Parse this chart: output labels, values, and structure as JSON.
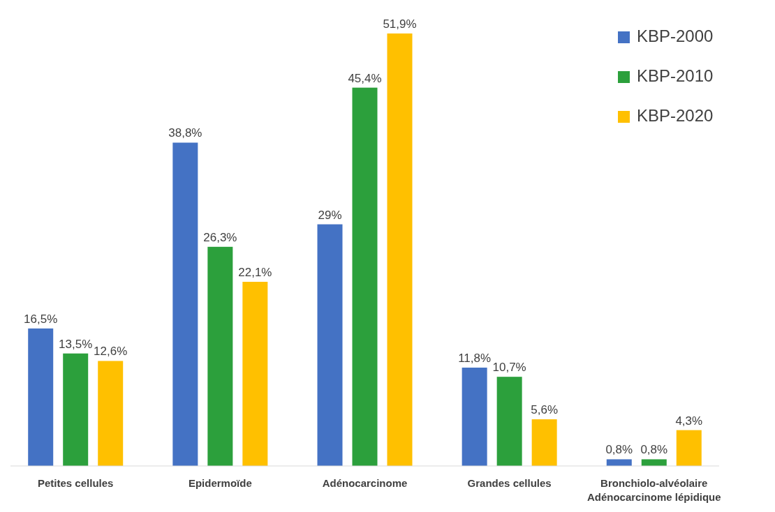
{
  "chart_data": {
    "type": "bar",
    "categories": [
      "Petites cellules",
      "Epidermoïde",
      "Adénocarcinome",
      "Grandes cellules",
      "Bronchiolo-alvéolaire\nAdénocarcinome lépidique"
    ],
    "series": [
      {
        "name": "KBP-2000",
        "color": "#4472c4",
        "values": [
          16.5,
          38.8,
          29,
          11.8,
          0.8
        ],
        "value_labels": [
          "16,5%",
          "38,8%",
          "29%",
          "11,8%",
          "0,8%"
        ]
      },
      {
        "name": "KBP-2010",
        "color": "#2ca03c",
        "values": [
          13.5,
          26.3,
          45.4,
          10.7,
          0.8
        ],
        "value_labels": [
          "13,5%",
          "26,3%",
          "45,4%",
          "10,7%",
          "0,8%"
        ]
      },
      {
        "name": "KBP-2020",
        "color": "#ffc000",
        "values": [
          12.6,
          22.1,
          51.9,
          5.6,
          4.3
        ],
        "value_labels": [
          "12,6%",
          "22,1%",
          "51,9%",
          "5,6%",
          "4,3%"
        ]
      }
    ],
    "legend": "top right"
  }
}
